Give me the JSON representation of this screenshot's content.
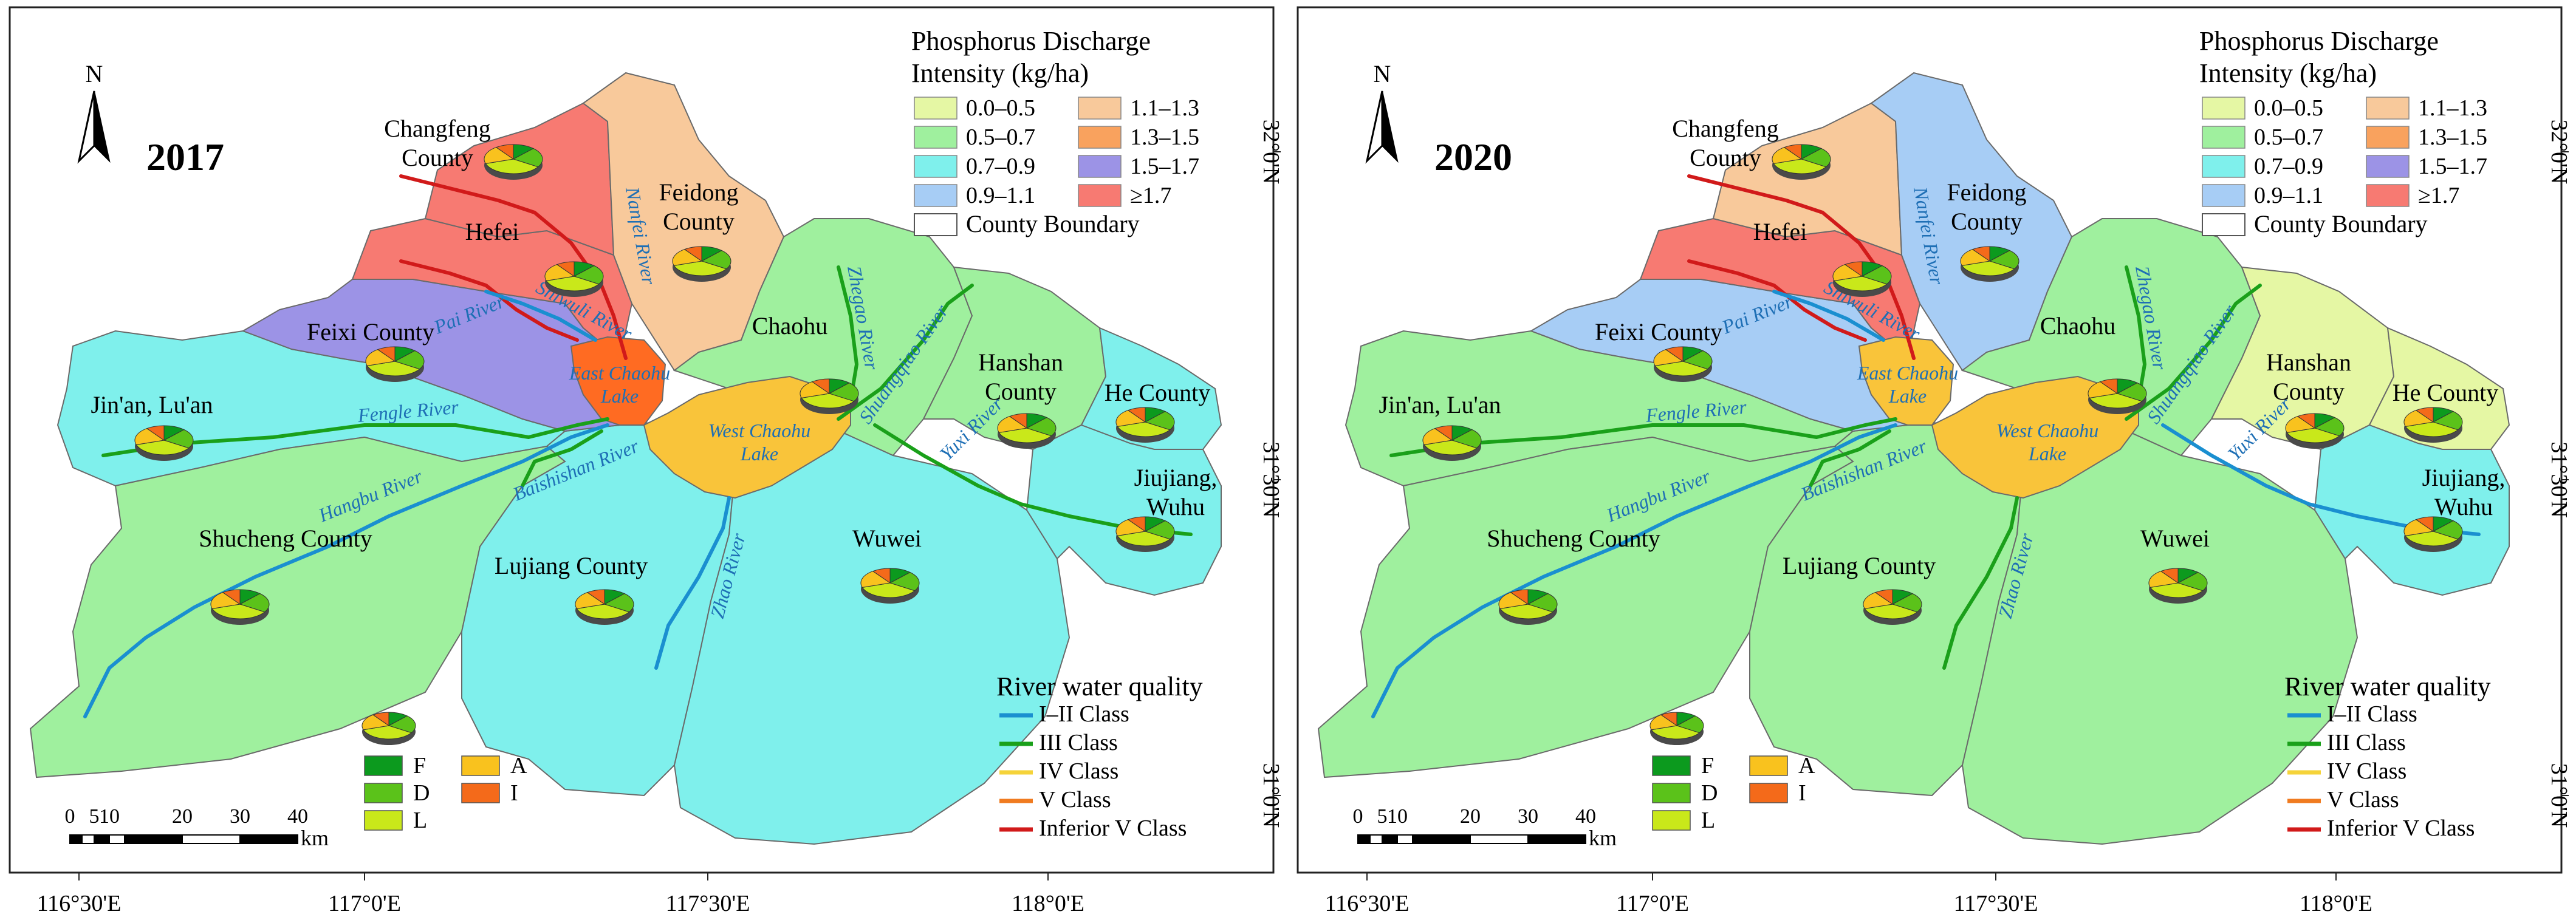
{
  "maps": [
    {
      "year": "2017",
      "region_colors": {
        "changfeng": "#f77a72",
        "hefei": "#f77a72",
        "feidong": "#f8c99b",
        "feixi": "#9c93e6",
        "jinan": "#7ff0ec",
        "shucheng": "#9ff09e",
        "lujiang": "#7ff0ec",
        "chaohu": "#9ff09e",
        "wuwei": "#7ff0ec",
        "hanshan": "#9ff09e",
        "hecounty": "#7ff0ec",
        "jiujiang": "#7ff0ec",
        "east_lake": "#ff6b22",
        "west_lake": "#f9c43a"
      }
    },
    {
      "year": "2020",
      "region_colors": {
        "changfeng": "#f8c99b",
        "hefei": "#f77a72",
        "feidong": "#a7cdf5",
        "feixi": "#a7cdf5",
        "jinan": "#9ff09e",
        "shucheng": "#9ff09e",
        "lujiang": "#9ff09e",
        "chaohu": "#9ff09e",
        "wuwei": "#9ff09e",
        "hanshan": "#e5f7a4",
        "hecounty": "#e5f7a4",
        "jiujiang": "#7ff0ec",
        "east_lake": "#f9c43a",
        "west_lake": "#f9c43a"
      }
    }
  ],
  "place_labels": {
    "changfeng": "Changfeng County",
    "hefei": "Hefei",
    "feidong": "Feidong County",
    "feixi": "Feixi County",
    "jinan": "Jin'an, Lu'an",
    "shucheng": "Shucheng County",
    "lujiang": "Lujiang County",
    "chaohu": "Chaohu",
    "wuwei": "Wuwei",
    "hanshan": "Hanshan County",
    "hecounty": "He County",
    "jiujiang": "Jiujiang, Wuhu"
  },
  "lake_labels": {
    "east": "East Chaohu Lake",
    "west": "West Chaohu Lake"
  },
  "river_labels": {
    "nanfei": "Nanfei River",
    "shiwuli": "Shiwuli River",
    "pai": "Pai River",
    "fengle": "Fengle River",
    "hangbu": "Hangbu River",
    "baishishan": "Baishishan River",
    "zhao": "Zhao River",
    "zhegao": "Zhegao River",
    "shuangqiao": "Shuangqiao River",
    "yuxi": "Yuxi River"
  },
  "compass": {
    "letter": "N"
  },
  "intensity_legend": {
    "title_line1": "Phosphorus Discharge",
    "title_line2": "Intensity  (kg/ha)",
    "items": [
      {
        "label": "0.0–0.5",
        "color": "#e5f7a4"
      },
      {
        "label": "0.5–0.7",
        "color": "#9ff09e"
      },
      {
        "label": "0.7–0.9",
        "color": "#7ff0ec"
      },
      {
        "label": "0.9–1.1",
        "color": "#a7cdf5"
      },
      {
        "label": "1.1–1.3",
        "color": "#f8c99b"
      },
      {
        "label": "1.3–1.5",
        "color": "#f9a25e"
      },
      {
        "label": "1.5–1.7",
        "color": "#9c93e6"
      },
      {
        "label": "≥1.7",
        "color": "#f77a72"
      }
    ],
    "boundary_label": "County Boundary"
  },
  "river_legend": {
    "title": "River water quality",
    "items": [
      {
        "label": "I–II  Class",
        "color": "#1a8fd0"
      },
      {
        "label": "III Class",
        "color": "#1aa01a"
      },
      {
        "label": "IV Class",
        "color": "#f5d33a"
      },
      {
        "label": "V Class",
        "color": "#f07b20"
      },
      {
        "label": "Inferior V Class",
        "color": "#d11a1a"
      }
    ]
  },
  "source_legend": {
    "items": [
      {
        "label": "F",
        "color": "#0c9a1e"
      },
      {
        "label": "D",
        "color": "#5bc21a"
      },
      {
        "label": "L",
        "color": "#c9e81a"
      },
      {
        "label": "A",
        "color": "#f9c21e"
      },
      {
        "label": "I",
        "color": "#f46a1a"
      }
    ]
  },
  "scale_bar": {
    "ticks": [
      "0",
      "5",
      "10",
      "20",
      "30",
      "40"
    ],
    "unit": "km"
  },
  "axes": {
    "lon_labels": [
      "116°30'E",
      "117°0'E",
      "117°30'E",
      "118°0'E"
    ],
    "lat_labels": [
      "32°0'N",
      "31°30'N",
      "31°0'N"
    ]
  }
}
